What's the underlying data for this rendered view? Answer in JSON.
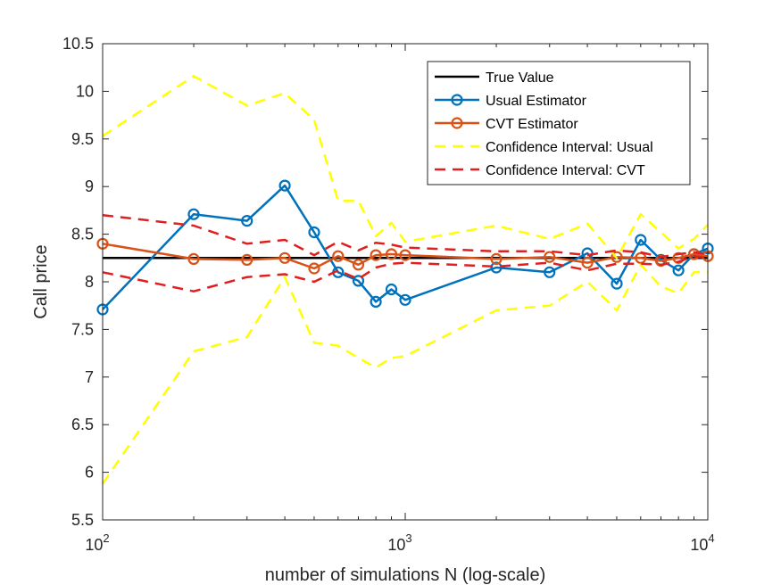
{
  "chart_data": {
    "type": "line",
    "title": "",
    "xlabel": "number of simulations N (log-scale)",
    "ylabel": "Call price",
    "xscale": "log",
    "xlim": [
      100,
      10000
    ],
    "ylim": [
      5.5,
      10.5
    ],
    "x_ticks": [
      100,
      1000,
      10000
    ],
    "x_tick_labels": [
      {
        "base": "10",
        "exp": "2"
      },
      {
        "base": "10",
        "exp": "3"
      },
      {
        "base": "10",
        "exp": "4"
      }
    ],
    "y_ticks": [
      5.5,
      6,
      6.5,
      7,
      7.5,
      8,
      8.5,
      9,
      9.5,
      10,
      10.5
    ],
    "y_tick_labels": [
      "5.5",
      "6",
      "6.5",
      "7",
      "7.5",
      "8",
      "8.5",
      "9",
      "9.5",
      "10",
      "10.5"
    ],
    "grid": false,
    "legend_position": "top-right",
    "x": [
      100,
      200,
      300,
      400,
      500,
      600,
      700,
      800,
      900,
      1000,
      2000,
      3000,
      4000,
      5000,
      6000,
      7000,
      8000,
      9000,
      10000
    ],
    "series": [
      {
        "name": "True Value",
        "color": "#000000",
        "style": "solid",
        "marker": "none",
        "values": [
          8.25,
          8.25,
          8.25,
          8.25,
          8.25,
          8.25,
          8.25,
          8.25,
          8.25,
          8.25,
          8.25,
          8.25,
          8.25,
          8.25,
          8.25,
          8.25,
          8.25,
          8.25,
          8.25
        ]
      },
      {
        "name": "Usual Estimator",
        "color": "#0072BD",
        "style": "solid",
        "marker": "circle",
        "values": [
          7.71,
          8.71,
          8.64,
          9.01,
          8.52,
          8.1,
          8.01,
          7.79,
          7.92,
          7.81,
          8.15,
          8.1,
          8.3,
          7.98,
          8.44,
          8.23,
          8.12,
          8.29,
          8.35
        ]
      },
      {
        "name": "CVT Estimator",
        "color": "#D95319",
        "style": "solid",
        "marker": "circle",
        "values": [
          8.4,
          8.24,
          8.23,
          8.25,
          8.14,
          8.27,
          8.18,
          8.28,
          8.29,
          8.28,
          8.24,
          8.26,
          8.2,
          8.26,
          8.25,
          8.22,
          8.25,
          8.29,
          8.27
        ]
      },
      {
        "name": "Confidence Interval: Usual",
        "color": "#FFFF00",
        "style": "dashed",
        "marker": "none",
        "values": [
          9.53,
          10.16,
          9.85,
          9.98,
          9.7,
          8.85,
          8.85,
          8.48,
          8.62,
          8.42,
          8.59,
          8.45,
          8.61,
          8.25,
          8.71,
          8.52,
          8.35,
          8.45,
          8.6
        ]
      },
      {
        "name": "",
        "color": "#FFFF00",
        "style": "dashed",
        "marker": "none",
        "values": [
          5.88,
          7.27,
          7.42,
          8.05,
          7.36,
          7.33,
          7.2,
          7.1,
          7.2,
          7.22,
          7.7,
          7.75,
          8.0,
          7.7,
          8.18,
          7.95,
          7.88,
          8.1,
          8.1
        ]
      },
      {
        "name": "Confidence Interval: CVT",
        "color": "#E02020",
        "style": "dashed",
        "marker": "none",
        "values": [
          8.7,
          8.59,
          8.4,
          8.44,
          8.28,
          8.42,
          8.33,
          8.41,
          8.39,
          8.36,
          8.32,
          8.32,
          8.28,
          8.33,
          8.31,
          8.26,
          8.29,
          8.31,
          8.29
        ]
      },
      {
        "name": "",
        "color": "#E02020",
        "style": "dashed",
        "marker": "none",
        "values": [
          8.1,
          7.9,
          8.05,
          8.08,
          8.0,
          8.12,
          8.03,
          8.15,
          8.19,
          8.2,
          8.16,
          8.2,
          8.12,
          8.19,
          8.19,
          8.18,
          8.21,
          8.27,
          8.25
        ]
      }
    ]
  }
}
